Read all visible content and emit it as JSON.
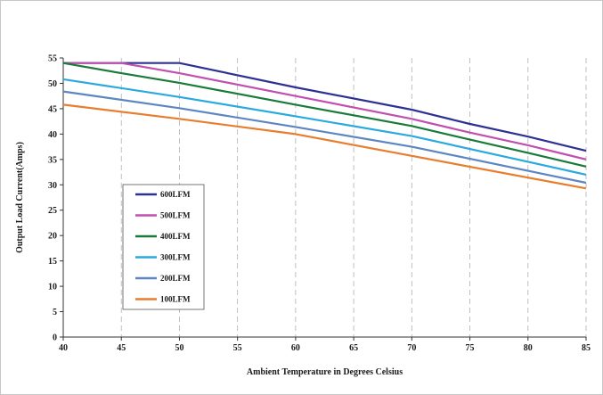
{
  "chart_data": {
    "type": "line",
    "title": "",
    "xlabel": "Ambient Temperature in Degrees Celsius",
    "ylabel": "Output  Load Current(Amps)",
    "xlim": [
      40,
      85
    ],
    "ylim": [
      0,
      55
    ],
    "x_ticks": [
      40,
      45,
      50,
      55,
      60,
      65,
      70,
      75,
      80,
      85
    ],
    "y_ticks": [
      0,
      5,
      10,
      15,
      20,
      25,
      30,
      35,
      40,
      45,
      50,
      55
    ],
    "grid": "vertical dashed",
    "legend_position": "lower-left inside plot",
    "series": [
      {
        "name": "600LFM",
        "color": "#2e3192",
        "x": [
          40,
          45,
          50,
          60,
          70,
          75,
          80,
          85
        ],
        "y": [
          54,
          54,
          54,
          49.2,
          44.8,
          42,
          39.5,
          36.7
        ]
      },
      {
        "name": "500LFM",
        "color": "#c04fb0",
        "x": [
          40,
          45,
          50,
          60,
          70,
          75,
          80,
          85
        ],
        "y": [
          54,
          54,
          52,
          47.5,
          43,
          40.3,
          37.8,
          35
        ]
      },
      {
        "name": "400LFM",
        "color": "#1a7a3a",
        "x": [
          40,
          45,
          50,
          60,
          70,
          75,
          80,
          85
        ],
        "y": [
          54,
          52,
          50.1,
          45.8,
          41.6,
          38.9,
          36.3,
          33.6
        ]
      },
      {
        "name": "300LFM",
        "color": "#2aa9e0",
        "x": [
          40,
          50,
          60,
          70,
          85
        ],
        "y": [
          50.8,
          47.3,
          43.5,
          39.6,
          32
        ]
      },
      {
        "name": "200LFM",
        "color": "#5b86c0",
        "x": [
          40,
          50,
          60,
          70,
          85
        ],
        "y": [
          48.4,
          45.1,
          41.4,
          37.5,
          30.4
        ]
      },
      {
        "name": "100LFM",
        "color": "#e87d2e",
        "x": [
          40,
          50,
          60,
          70,
          85
        ],
        "y": [
          45.8,
          43,
          40,
          35.7,
          29.3
        ]
      }
    ]
  }
}
